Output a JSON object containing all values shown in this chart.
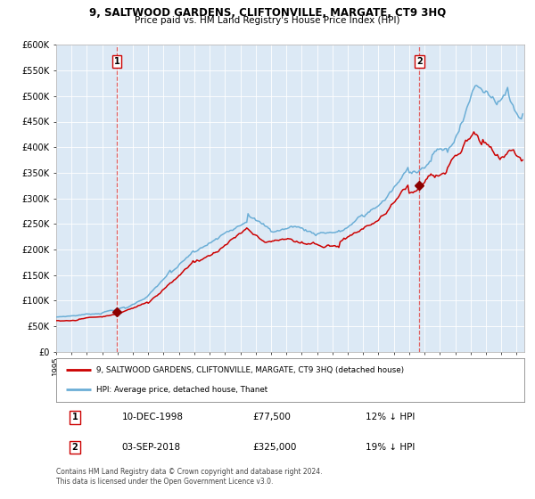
{
  "title": "9, SALTWOOD GARDENS, CLIFTONVILLE, MARGATE, CT9 3HQ",
  "subtitle": "Price paid vs. HM Land Registry's House Price Index (HPI)",
  "background_color": "#dce9f5",
  "hpi_color": "#6baed6",
  "property_color": "#cc0000",
  "marker_color": "#8b0000",
  "vline_color": "#e06060",
  "ylim": [
    0,
    600000
  ],
  "yticks": [
    0,
    50000,
    100000,
    150000,
    200000,
    250000,
    300000,
    350000,
    400000,
    450000,
    500000,
    550000,
    600000
  ],
  "legend_label_property": "9, SALTWOOD GARDENS, CLIFTONVILLE, MARGATE, CT9 3HQ (detached house)",
  "legend_label_hpi": "HPI: Average price, detached house, Thanet",
  "sale1_price": 77500,
  "sale1_label": "1",
  "sale1_x": 1998.94,
  "sale2_price": 325000,
  "sale2_label": "2",
  "sale2_x": 2018.67,
  "table_row1": [
    "1",
    "10-DEC-1998",
    "£77,500",
    "12% ↓ HPI"
  ],
  "table_row2": [
    "2",
    "03-SEP-2018",
    "£325,000",
    "19% ↓ HPI"
  ],
  "footnote": "Contains HM Land Registry data © Crown copyright and database right 2024.\nThis data is licensed under the Open Government Licence v3.0.",
  "xmin": 1995.0,
  "xmax": 2025.5
}
